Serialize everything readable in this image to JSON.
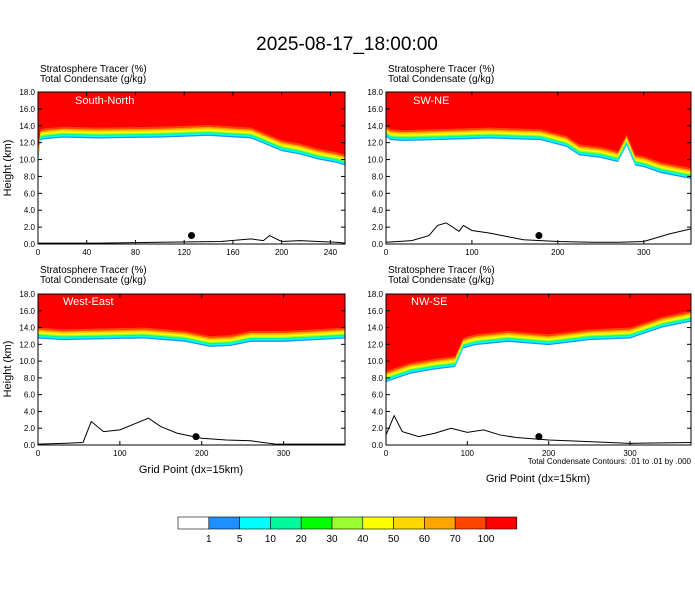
{
  "title": "2025-08-17_18:00:00",
  "footnote": "Total Condensate Contours: .01 to .01 by .000",
  "colors": {
    "levels": [
      "#ffffff",
      "#1e90ff",
      "#00ffff",
      "#00fa9a",
      "#00ff00",
      "#9aff32",
      "#ffff00",
      "#ffd700",
      "#ffa500",
      "#ff4500",
      "#ff0000"
    ],
    "contour": "#000000"
  },
  "colorbar": {
    "labels": [
      "1",
      "5",
      "10",
      "20",
      "30",
      "40",
      "50",
      "60",
      "70",
      "100"
    ]
  },
  "chart_data": [
    {
      "type": "area",
      "panel_label": "South-North",
      "header_lines": [
        "Stratosphere Tracer   (%)",
        "Total Condensate   (g/kg)"
      ],
      "ylabel": "Height (km)",
      "xlabel": "",
      "xlim": [
        0,
        252
      ],
      "ylim": [
        0,
        18
      ],
      "x_ticks": [
        0,
        40,
        80,
        120,
        160,
        200,
        240
      ],
      "y_ticks": [
        "0.0",
        "2.0",
        "4.0",
        "6.0",
        "8.0",
        "10.0",
        "12.0",
        "14.0",
        "16.0",
        "18.0"
      ],
      "tropopause_x": [
        0,
        2,
        6,
        20,
        50,
        100,
        140,
        175,
        200,
        215,
        230,
        245,
        252
      ],
      "tropopause_y": [
        11.0,
        13.6,
        13.7,
        13.9,
        13.8,
        13.9,
        14.1,
        13.8,
        12.3,
        11.9,
        11.3,
        10.9,
        10.6
      ],
      "terrain_x": [
        0,
        50,
        100,
        150,
        175,
        185,
        190,
        200,
        215,
        230,
        245,
        252
      ],
      "terrain_y": [
        0.1,
        0.1,
        0.2,
        0.3,
        0.6,
        0.4,
        1.0,
        0.3,
        0.4,
        0.3,
        0.2,
        0.1
      ],
      "marker": [
        126,
        1.0
      ]
    },
    {
      "type": "area",
      "panel_label": "SW-NE",
      "header_lines": [
        "Stratosphere Tracer   (%)",
        "Total Condensate   (g/kg)"
      ],
      "ylabel": "",
      "xlabel": "",
      "xlim": [
        0,
        355
      ],
      "ylim": [
        0,
        18
      ],
      "x_ticks": [
        0,
        100,
        200,
        300
      ],
      "y_ticks": [
        "0.0",
        "2.0",
        "4.0",
        "6.0",
        "8.0",
        "10.0",
        "12.0",
        "14.0",
        "16.0",
        "18.0"
      ],
      "tropopause_x": [
        0,
        5,
        20,
        60,
        120,
        180,
        210,
        225,
        250,
        270,
        280,
        290,
        300,
        320,
        355
      ],
      "tropopause_y": [
        14.0,
        13.6,
        13.5,
        13.6,
        13.8,
        13.6,
        12.8,
        11.8,
        11.5,
        11.0,
        13.0,
        10.6,
        10.4,
        9.7,
        9.0
      ],
      "terrain_x": [
        0,
        30,
        50,
        60,
        70,
        85,
        90,
        100,
        120,
        140,
        160,
        200,
        240,
        270,
        300,
        330,
        355
      ],
      "terrain_y": [
        0.2,
        0.4,
        1.0,
        2.2,
        2.5,
        1.5,
        2.2,
        1.6,
        1.3,
        0.9,
        0.5,
        0.3,
        0.2,
        0.2,
        0.3,
        1.2,
        1.8
      ],
      "marker": [
        178,
        1.0
      ]
    },
    {
      "type": "area",
      "panel_label": "West-East",
      "header_lines": [
        "Stratosphere Tracer   (%)",
        "Total Condensate   (g/kg)"
      ],
      "ylabel": "Height (km)",
      "xlabel": "Grid Point (dx=15km)",
      "xlim": [
        0,
        375
      ],
      "ylim": [
        0,
        18
      ],
      "x_ticks": [
        0,
        100,
        200,
        300
      ],
      "y_ticks": [
        "0.0",
        "2.0",
        "4.0",
        "6.0",
        "8.0",
        "10.0",
        "12.0",
        "14.0",
        "16.0",
        "18.0"
      ],
      "tropopause_x": [
        0,
        30,
        80,
        130,
        180,
        210,
        235,
        260,
        300,
        340,
        375
      ],
      "tropopause_y": [
        14.0,
        13.8,
        13.9,
        14.0,
        13.6,
        13.0,
        13.1,
        13.6,
        13.6,
        13.8,
        14.0
      ],
      "terrain_x": [
        0,
        30,
        55,
        65,
        80,
        100,
        120,
        135,
        150,
        170,
        200,
        230,
        260,
        290,
        330,
        375
      ],
      "terrain_y": [
        0.1,
        0.2,
        0.3,
        2.8,
        1.6,
        1.8,
        2.6,
        3.2,
        2.2,
        1.4,
        0.8,
        0.6,
        0.5,
        0.1,
        0.1,
        0.1
      ],
      "marker": [
        193,
        1.0
      ]
    },
    {
      "type": "area",
      "panel_label": "NW-SE",
      "header_lines": [
        "Stratosphere Tracer   (%)",
        "Total Condensate   (g/kg)"
      ],
      "ylabel": "",
      "xlabel": "Grid Point (dx=15km)",
      "xlim": [
        0,
        375
      ],
      "ylim": [
        0,
        18
      ],
      "x_ticks": [
        0,
        100,
        200,
        300
      ],
      "y_ticks": [
        "0.0",
        "2.0",
        "4.0",
        "6.0",
        "8.0",
        "10.0",
        "12.0",
        "14.0",
        "16.0",
        "18.0"
      ],
      "tropopause_x": [
        0,
        30,
        60,
        85,
        95,
        110,
        150,
        200,
        250,
        300,
        340,
        375
      ],
      "tropopause_y": [
        8.8,
        9.8,
        10.3,
        10.6,
        12.8,
        13.2,
        13.6,
        13.2,
        13.8,
        14.0,
        15.3,
        16.0
      ],
      "terrain_x": [
        0,
        10,
        20,
        40,
        60,
        80,
        100,
        120,
        140,
        160,
        200,
        250,
        300,
        375
      ],
      "terrain_y": [
        1.2,
        3.5,
        1.6,
        1.0,
        1.4,
        2.0,
        1.5,
        1.8,
        1.2,
        0.9,
        0.6,
        0.4,
        0.2,
        0.3
      ],
      "marker": [
        188,
        1.0
      ]
    }
  ]
}
